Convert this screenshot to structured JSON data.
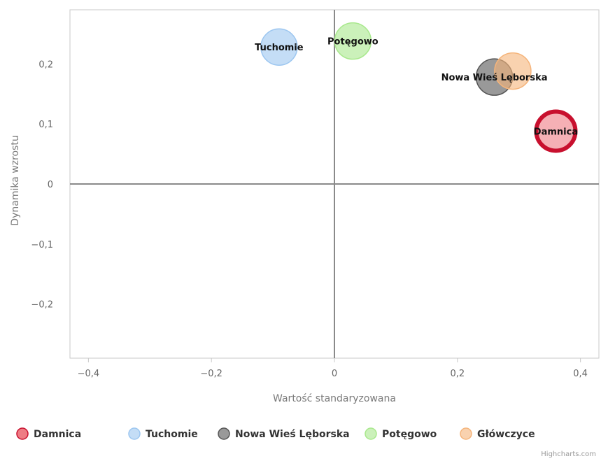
{
  "chart_data": {
    "type": "scatter",
    "subtype": "bubble",
    "title": "",
    "xlabel": "Wartość standaryzowana",
    "ylabel": "Dynamika wzrostu",
    "xlim": [
      -0.43,
      0.43
    ],
    "ylim": [
      -0.29,
      0.29
    ],
    "x_ticks": [
      -0.4,
      -0.2,
      0,
      0.2,
      0.4
    ],
    "x_tick_labels": [
      "−0,4",
      "−0,2",
      "0",
      "0,2",
      "0,4"
    ],
    "y_ticks": [
      -0.2,
      -0.1,
      0,
      0.1,
      0.2
    ],
    "y_tick_labels": [
      "−0,2",
      "−0,1",
      "0",
      "0,1",
      "0,2"
    ],
    "grid": false,
    "zero_lines": true,
    "legend_position": "bottom",
    "series": [
      {
        "name": "Damnica",
        "color": "#e8505b",
        "highlighted": true,
        "points": [
          {
            "x": 0.36,
            "y": 0.088,
            "label": "Damnica"
          }
        ]
      },
      {
        "name": "Tuchomie",
        "color": "#9cc6f0",
        "points": [
          {
            "x": -0.09,
            "y": 0.228,
            "label": "Tuchomie"
          }
        ]
      },
      {
        "name": "Nowa Wieś Lęborska",
        "color": "#555555",
        "points": [
          {
            "x": 0.26,
            "y": 0.178,
            "label": "Nowa Wieś Lęborska"
          }
        ]
      },
      {
        "name": "Potęgowo",
        "color": "#a8e88c",
        "points": [
          {
            "x": 0.03,
            "y": 0.238,
            "label": "Potęgowo"
          }
        ]
      },
      {
        "name": "Główczyce",
        "color": "#f5b47a",
        "points": [
          {
            "x": 0.29,
            "y": 0.188,
            "label": ""
          }
        ]
      }
    ],
    "credits": "Highcharts.com"
  }
}
